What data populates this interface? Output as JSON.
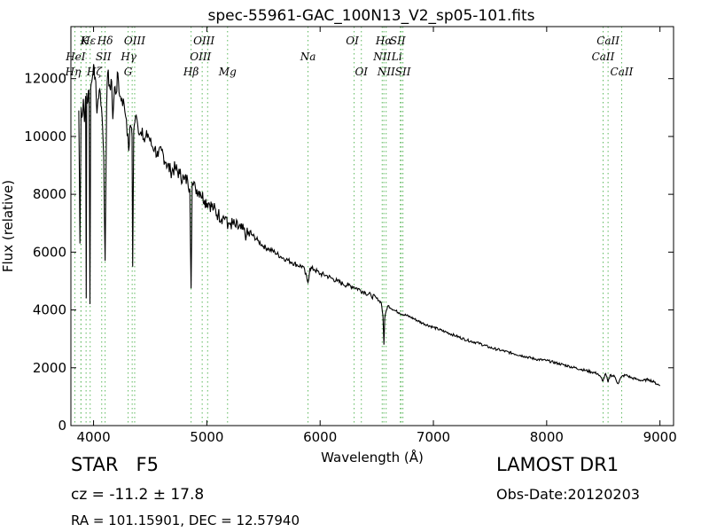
{
  "chart_data": {
    "type": "line",
    "title": "spec-55961-GAC_100N13_V2_sp05-101.fits",
    "xlabel": "Wavelength (Å)",
    "ylabel": "Flux (relative)",
    "xlim": [
      3800,
      9120
    ],
    "ylim": [
      0,
      13800
    ],
    "xticks": [
      4000,
      5000,
      6000,
      7000,
      8000,
      9000
    ],
    "yticks": [
      0,
      2000,
      4000,
      6000,
      8000,
      10000,
      12000
    ],
    "grid": false,
    "series": [
      {
        "color": "#000000",
        "x": [
          3870,
          3880,
          3890,
          3900,
          3910,
          3920,
          3930,
          3935,
          3940,
          3950,
          3960,
          3968,
          3975,
          3985,
          4000,
          4010,
          4020,
          4030,
          4040,
          4050,
          4060,
          4070,
          4080,
          4090,
          4102,
          4115,
          4125,
          4140,
          4150,
          4160,
          4170,
          4185,
          4200,
          4215,
          4230,
          4250,
          4270,
          4290,
          4310,
          4325,
          4335,
          4340,
          4345,
          4355,
          4370,
          4390,
          4410,
          4430,
          4450,
          4480,
          4510,
          4540,
          4570,
          4600,
          4640,
          4680,
          4720,
          4760,
          4800,
          4830,
          4850,
          4861,
          4870,
          4880,
          4900,
          4940,
          4980,
          5020,
          5060,
          5100,
          5140,
          5170,
          5183,
          5190,
          5210,
          5250,
          5300,
          5350,
          5400,
          5450,
          5500,
          5550,
          5600,
          5650,
          5700,
          5750,
          5800,
          5850,
          5893,
          5910,
          5950,
          6000,
          6050,
          6100,
          6150,
          6200,
          6250,
          6300,
          6350,
          6400,
          6450,
          6500,
          6540,
          6555,
          6563,
          6570,
          6585,
          6600,
          6650,
          6700,
          6800,
          6900,
          7000,
          7100,
          7200,
          7300,
          7400,
          7500,
          7600,
          7700,
          7800,
          7900,
          8000,
          8100,
          8200,
          8300,
          8400,
          8450,
          8498,
          8520,
          8542,
          8560,
          8600,
          8630,
          8662,
          8700,
          8750,
          8800,
          8850,
          8900,
          8950,
          9000
        ],
        "y": [
          10900,
          6300,
          11000,
          10700,
          11300,
          10500,
          11400,
          4400,
          11500,
          11200,
          11600,
          4200,
          11700,
          11900,
          12500,
          12000,
          11900,
          10800,
          11300,
          11600,
          11500,
          11000,
          10300,
          9300,
          5700,
          11000,
          12200,
          11800,
          11600,
          11900,
          10600,
          11700,
          11500,
          12200,
          11400,
          11300,
          11100,
          10600,
          9500,
          10400,
          10300,
          10000,
          5500,
          10200,
          10700,
          10400,
          10100,
          10300,
          9800,
          10100,
          9700,
          9600,
          9300,
          9500,
          9100,
          8800,
          8900,
          8700,
          8500,
          8500,
          8200,
          4750,
          8400,
          8300,
          8200,
          8100,
          7800,
          7700,
          7500,
          7300,
          7200,
          7200,
          6800,
          7000,
          7000,
          6900,
          6800,
          6600,
          6600,
          6400,
          6200,
          6100,
          6000,
          5850,
          5750,
          5650,
          5550,
          5500,
          4950,
          5450,
          5400,
          5250,
          5200,
          5100,
          5000,
          4900,
          4850,
          4800,
          4700,
          4600,
          4500,
          4400,
          4250,
          3800,
          2800,
          3700,
          4000,
          4150,
          4000,
          3900,
          3750,
          3550,
          3400,
          3250,
          3100,
          2950,
          2850,
          2700,
          2600,
          2500,
          2400,
          2300,
          2250,
          2150,
          2050,
          1950,
          1850,
          1800,
          1550,
          1800,
          1500,
          1750,
          1700,
          1450,
          1700,
          1750,
          1650,
          1600,
          1550,
          1600,
          1500,
          1380
        ]
      }
    ],
    "lines": [
      {
        "name": "K",
        "wl": 3934,
        "row": 0,
        "dx": -2
      },
      {
        "name": "Hε",
        "wl": 3970,
        "row": 0,
        "dx": -2
      },
      {
        "name": "Hδ",
        "wl": 4102,
        "row": 0,
        "dx": 0
      },
      {
        "name": "SII",
        "wl": 4072,
        "row": 1,
        "dx": 2
      },
      {
        "name": "OIII",
        "wl": 4363,
        "row": 0,
        "dx": 0
      },
      {
        "name": "OIII",
        "wl": 4959,
        "row": 0,
        "dx": 2
      },
      {
        "name": "HeI",
        "wl": 3889,
        "row": 1,
        "dx": -6
      },
      {
        "name": "Hγ",
        "wl": 4341,
        "row": 1,
        "dx": -4
      },
      {
        "name": "OIII",
        "wl": 5007,
        "row": 1,
        "dx": -8
      },
      {
        "name": "Na",
        "wl": 5893,
        "row": 1,
        "dx": 0
      },
      {
        "name": "Hη",
        "wl": 3835,
        "row": 2,
        "dx": -2
      },
      {
        "name": "Hζ",
        "wl": 3889,
        "row": 2,
        "dx": 15
      },
      {
        "name": "G",
        "wl": 4305,
        "row": 2,
        "dx": 0
      },
      {
        "name": "Hβ",
        "wl": 4861,
        "row": 2,
        "dx": 0
      },
      {
        "name": "Mg",
        "wl": 5183,
        "row": 2,
        "dx": 0
      },
      {
        "name": "OI",
        "wl": 6300,
        "row": 0,
        "dx": -2
      },
      {
        "name": "OI",
        "wl": 6364,
        "row": 2,
        "dx": 0
      },
      {
        "name": "Hα",
        "wl": 6563,
        "row": 0,
        "dx": 0
      },
      {
        "name": "SII",
        "wl": 6716,
        "row": 0,
        "dx": -4
      },
      {
        "name": "NII",
        "wl": 6548,
        "row": 1,
        "dx": 0
      },
      {
        "name": "Li",
        "wl": 6708,
        "row": 1,
        "dx": -4
      },
      {
        "name": "NII",
        "wl": 6583,
        "row": 2,
        "dx": 0
      },
      {
        "name": "SII",
        "wl": 6731,
        "row": 2,
        "dx": 0
      },
      {
        "name": "CaII",
        "wl": 8542,
        "row": 0,
        "dx": 0
      },
      {
        "name": "CaII",
        "wl": 8498,
        "row": 1,
        "dx": 0
      },
      {
        "name": "CaII",
        "wl": 8662,
        "row": 2,
        "dx": 0
      }
    ],
    "line_color": "#5cb85c"
  },
  "info": {
    "obj_class": "STAR   F5",
    "redshift": "cz = -11.2 ± 17.8",
    "coords": "RA = 101.15901, DEC = 12.57940",
    "survey": "LAMOST DR1",
    "obs_date": "Obs-Date:20120203"
  }
}
